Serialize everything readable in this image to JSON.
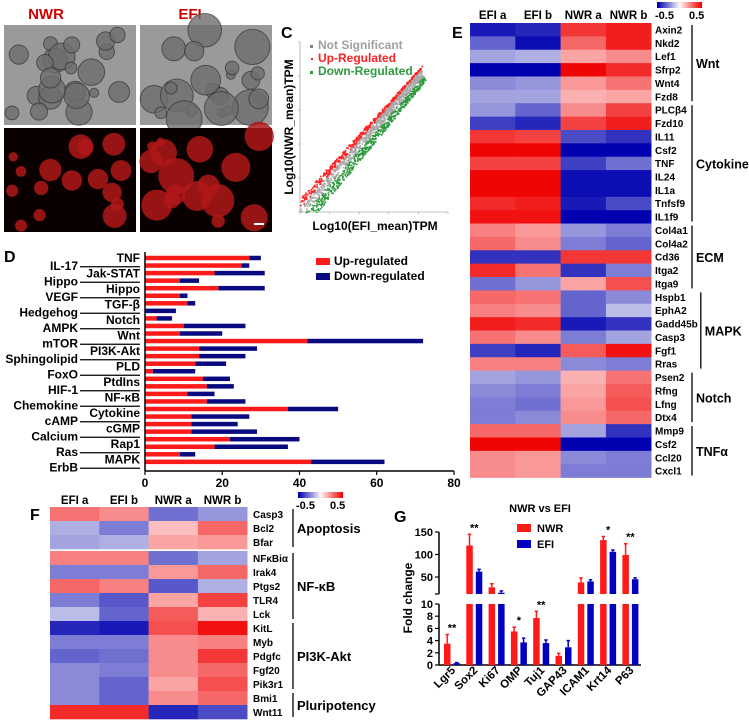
{
  "panels": {
    "A": {
      "letter": "A",
      "title": "NWR"
    },
    "B": {
      "letter": "B",
      "title": "EFI"
    },
    "C": {
      "letter": "C"
    },
    "D": {
      "letter": "D"
    },
    "E": {
      "letter": "E"
    },
    "F": {
      "letter": "F"
    },
    "G": {
      "letter": "G"
    }
  },
  "colors": {
    "up": "#ff1a1a",
    "down": "#0a0a80",
    "nwr": "#ff1a1a",
    "efi": "#0000c0",
    "not_significant": "#a0a0a0",
    "scatter_up": "#ff2020",
    "scatter_down": "#2e9a3e",
    "heat_high": "#ee1010",
    "heat_low": "#0000b0"
  },
  "chart_data": [
    {
      "panel": "C",
      "type": "scatter",
      "xlabel": "Log10(EFI_mean)TPM",
      "ylabel": "Log10(NWR_mean)TPM",
      "xlim": [
        0,
        5
      ],
      "ylim": [
        0,
        5
      ],
      "legend": [
        "Not Significant",
        "Up-Regulated",
        "Down-Regulated"
      ],
      "legend_placement": "top-left"
    },
    {
      "panel": "D",
      "type": "bar",
      "orientation": "horizontal-stacked",
      "categories": [
        "TNF",
        "IL-17",
        "Jak-STAT",
        "Hippo",
        "Hippo",
        "VEGF",
        "TGF-β",
        "Hedgehog",
        "Notch",
        "Wnt",
        "AMPK",
        "PI3K-Akt",
        "mTOR",
        "PLD",
        "Sphingolipid",
        "PtdIns",
        "FoxO",
        "HIF-1",
        "NF-κB",
        "Chemokine",
        "Cytokine",
        "cAMP",
        "cGMP",
        "Calcium",
        "Rap1",
        "Ras",
        "ErbB",
        "MAPK"
      ],
      "series": [
        {
          "name": "Up-regulated",
          "values": [
            27,
            25,
            18,
            9,
            19,
            9,
            11,
            0,
            3,
            10,
            9,
            42,
            14,
            14,
            13,
            2,
            15,
            16,
            11,
            16,
            37,
            12,
            12,
            12,
            22,
            18,
            9,
            43
          ]
        },
        {
          "name": "Down-regulated",
          "values": [
            3,
            2,
            13,
            5,
            12,
            2,
            2,
            8,
            4,
            16,
            11,
            30,
            15,
            12,
            8,
            11,
            7,
            7,
            7,
            10,
            13,
            15,
            12,
            17,
            18,
            19,
            4,
            19
          ]
        }
      ],
      "xlim": [
        0,
        80
      ],
      "xticks": [
        "0",
        "20",
        "40",
        "60",
        "80"
      ],
      "legend_placement": "top-right"
    },
    {
      "panel": "E",
      "type": "heatmap",
      "columns": [
        "EFI a",
        "EFI b",
        "NWR a",
        "NWR b"
      ],
      "scale_labels": [
        "-0.5",
        "0.5"
      ],
      "groups": [
        {
          "name": "Wnt",
          "rows": [
            "Axin2",
            "Nkd2",
            "Lef1",
            "Sfrp2",
            "Wnt4",
            "Fzd8"
          ]
        },
        {
          "name": "Cytokine",
          "rows": [
            "PLCβ4",
            "Fzd10",
            "IL11",
            "Csf2",
            "TNF",
            "IL24",
            "IL1a",
            "Tnfsf9",
            "IL1f9"
          ]
        },
        {
          "name": "ECM",
          "rows": [
            "Col4a1",
            "Col4a2",
            "Cd36",
            "Itga2",
            "Itga9"
          ]
        },
        {
          "name": "MAPK",
          "rows": [
            "Hspb1",
            "EphA2",
            "Gadd45b",
            "Casp3",
            "Fgf1",
            "Rras"
          ]
        },
        {
          "name": "Notch",
          "rows": [
            "Psen2",
            "Rfng",
            "Lfng",
            "Dtx4"
          ]
        },
        {
          "name": "TNFα",
          "rows": [
            "Mmp9",
            "Csf2",
            "Ccl20",
            "Cxcl1"
          ]
        }
      ],
      "values": [
        [
          -0.9,
          -0.85,
          0.8,
          0.9
        ],
        [
          -0.6,
          -0.95,
          0.6,
          0.9
        ],
        [
          -0.35,
          -0.3,
          0.35,
          0.45
        ],
        [
          -1,
          -1,
          1,
          0.85
        ],
        [
          -0.45,
          -0.4,
          0.4,
          0.55
        ],
        [
          -0.35,
          -0.35,
          0.3,
          0.35
        ],
        [
          -0.4,
          -0.6,
          0.45,
          0.75
        ],
        [
          -0.75,
          -0.85,
          0.75,
          0.9
        ],
        [
          0.8,
          0.75,
          -0.7,
          -0.8
        ],
        [
          1,
          1,
          -1,
          -1
        ],
        [
          0.75,
          0.75,
          -0.75,
          -0.55
        ],
        [
          1,
          1,
          -0.95,
          -0.95
        ],
        [
          1,
          1,
          -0.95,
          -0.95
        ],
        [
          0.85,
          0.9,
          -0.9,
          -0.7
        ],
        [
          0.95,
          0.95,
          -1,
          -1
        ],
        [
          0.5,
          0.4,
          -0.4,
          -0.5
        ],
        [
          0.6,
          0.45,
          -0.5,
          -0.6
        ],
        [
          -0.8,
          -0.8,
          0.8,
          0.8
        ],
        [
          0.85,
          0.55,
          -0.8,
          -0.5
        ],
        [
          -0.55,
          -0.4,
          0.35,
          0.7
        ],
        [
          0.6,
          0.55,
          -0.6,
          -0.45
        ],
        [
          0.5,
          0.45,
          -0.6,
          -0.25
        ],
        [
          0.9,
          0.85,
          -0.9,
          -0.8
        ],
        [
          0.55,
          0.45,
          -0.5,
          -0.35
        ],
        [
          -0.75,
          -0.85,
          0.65,
          0.95
        ],
        [
          0.5,
          0.5,
          -0.45,
          -0.5
        ],
        [
          -0.35,
          -0.4,
          0.3,
          0.55
        ],
        [
          -0.45,
          -0.5,
          0.35,
          0.65
        ],
        [
          -0.5,
          -0.55,
          0.4,
          0.7
        ],
        [
          -0.5,
          -0.45,
          0.45,
          0.6
        ],
        [
          0.6,
          0.6,
          -0.35,
          -0.8
        ],
        [
          1,
          1,
          -1,
          -1
        ],
        [
          0.45,
          0.4,
          -0.45,
          -0.5
        ],
        [
          0.45,
          0.4,
          -0.5,
          -0.5
        ]
      ]
    },
    {
      "panel": "F",
      "type": "heatmap",
      "columns": [
        "EFI a",
        "EFI b",
        "NWR a",
        "NWR b"
      ],
      "scale_labels": [
        "-0.5",
        "0.5"
      ],
      "groups": [
        {
          "name": "Apoptosis",
          "rows": [
            "Casp3",
            "Bcl2",
            "Bfar"
          ]
        },
        {
          "name": "NF-κB",
          "rows": [
            "NFκBiα",
            "Irak4",
            "Ptgs2",
            "TLR4",
            "Lck"
          ]
        },
        {
          "name": "PI3K-Akt",
          "rows": [
            "KitL",
            "Myb",
            "Pdgfc",
            "Fgf20",
            "Pik3r1"
          ]
        },
        {
          "name": "Pluripotency",
          "rows": [
            "Bmi1",
            "Wnt11"
          ]
        }
      ],
      "values": [
        [
          0.55,
          0.45,
          -0.55,
          -0.4
        ],
        [
          -0.3,
          -0.5,
          0.25,
          0.6
        ],
        [
          -0.35,
          -0.3,
          0.35,
          0.4
        ],
        [
          0.5,
          0.5,
          -0.55,
          -0.35
        ],
        [
          -0.5,
          -0.5,
          0.4,
          0.6
        ],
        [
          0.6,
          0.5,
          -0.65,
          -0.3
        ],
        [
          -0.5,
          -0.65,
          0.35,
          0.75
        ],
        [
          -0.25,
          -0.6,
          0.65,
          0.3
        ],
        [
          -0.85,
          -0.9,
          0.7,
          0.95
        ],
        [
          -0.5,
          -0.5,
          0.45,
          0.5
        ],
        [
          -0.6,
          -0.55,
          0.45,
          0.8
        ],
        [
          -0.45,
          -0.5,
          0.45,
          0.6
        ],
        [
          -0.45,
          -0.6,
          0.35,
          0.7
        ],
        [
          -0.45,
          -0.6,
          0.45,
          0.6
        ],
        [
          0.85,
          0.85,
          -0.85,
          -0.7
        ]
      ]
    },
    {
      "panel": "G",
      "type": "bar",
      "title": "NWR vs EFI",
      "ylabel": "Fold change",
      "categories": [
        "Lgr5",
        "Sox2",
        "Ki67",
        "OMP",
        "Tuj1",
        "GAP43",
        "ICAM1",
        "Krt14",
        "P63"
      ],
      "series": [
        {
          "name": "NWR",
          "values": [
            3.5,
            120,
            27,
            5.5,
            7.7,
            1.5,
            38,
            132,
            99
          ],
          "errors": [
            1.5,
            25,
            8,
            0.7,
            1.1,
            0.4,
            10,
            8,
            25
          ]
        },
        {
          "name": "EFI",
          "values": [
            0.3,
            62,
            15,
            3.7,
            3.6,
            2.9,
            40,
            106,
            45
          ],
          "errors": [
            0.1,
            5,
            4,
            0.7,
            0.5,
            1.1,
            4,
            4,
            3
          ]
        }
      ],
      "significance": [
        "**",
        "**",
        "",
        "*",
        "**",
        "",
        "",
        "*",
        "**"
      ],
      "y_axis_break": true,
      "ylim_lower": [
        0,
        10
      ],
      "yticks_lower": [
        "0",
        "2",
        "4",
        "6",
        "8",
        "10"
      ],
      "ylim_upper": [
        15,
        150
      ],
      "yticks_upper": [
        "50",
        "100",
        "150"
      ],
      "legend_placement": "top"
    }
  ]
}
